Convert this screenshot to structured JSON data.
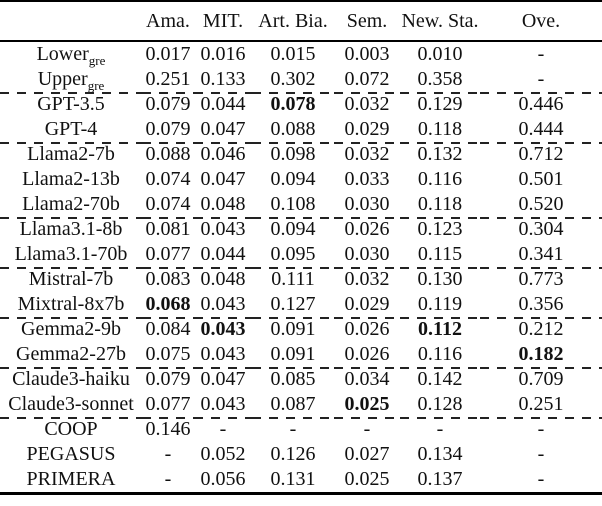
{
  "table": {
    "columns": [
      "Ama.",
      "MIT.",
      "Art. Bia.",
      "Sem.",
      "New. Sta.",
      "Ove."
    ],
    "rows": [
      {
        "label": "Lower",
        "subscript": "gre",
        "values": [
          "0.017",
          "0.016",
          "0.015",
          "0.003",
          "0.010",
          "-"
        ],
        "bold": [],
        "group_start": false
      },
      {
        "label": "Upper",
        "subscript": "gre",
        "values": [
          "0.251",
          "0.133",
          "0.302",
          "0.072",
          "0.358",
          "-"
        ],
        "bold": [],
        "group_start": false
      },
      {
        "label": "GPT-3.5",
        "subscript": "",
        "values": [
          "0.079",
          "0.044",
          "0.078",
          "0.032",
          "0.129",
          "0.446"
        ],
        "bold": [
          2
        ],
        "group_start": true
      },
      {
        "label": "GPT-4",
        "subscript": "",
        "values": [
          "0.079",
          "0.047",
          "0.088",
          "0.029",
          "0.118",
          "0.444"
        ],
        "bold": [],
        "group_start": false
      },
      {
        "label": "Llama2-7b",
        "subscript": "",
        "values": [
          "0.088",
          "0.046",
          "0.098",
          "0.032",
          "0.132",
          "0.712"
        ],
        "bold": [],
        "group_start": true
      },
      {
        "label": "Llama2-13b",
        "subscript": "",
        "values": [
          "0.074",
          "0.047",
          "0.094",
          "0.033",
          "0.116",
          "0.501"
        ],
        "bold": [],
        "group_start": false
      },
      {
        "label": "Llama2-70b",
        "subscript": "",
        "values": [
          "0.074",
          "0.048",
          "0.108",
          "0.030",
          "0.118",
          "0.520"
        ],
        "bold": [],
        "group_start": false
      },
      {
        "label": "Llama3.1-8b",
        "subscript": "",
        "values": [
          "0.081",
          "0.043",
          "0.094",
          "0.026",
          "0.123",
          "0.304"
        ],
        "bold": [],
        "group_start": true
      },
      {
        "label": "Llama3.1-70b",
        "subscript": "",
        "values": [
          "0.077",
          "0.044",
          "0.095",
          "0.030",
          "0.115",
          "0.341"
        ],
        "bold": [],
        "group_start": false
      },
      {
        "label": "Mistral-7b",
        "subscript": "",
        "values": [
          "0.083",
          "0.048",
          "0.111",
          "0.032",
          "0.130",
          "0.773"
        ],
        "bold": [],
        "group_start": true
      },
      {
        "label": "Mixtral-8x7b",
        "subscript": "",
        "values": [
          "0.068",
          "0.043",
          "0.127",
          "0.029",
          "0.119",
          "0.356"
        ],
        "bold": [
          0
        ],
        "group_start": false
      },
      {
        "label": "Gemma2-9b",
        "subscript": "",
        "values": [
          "0.084",
          "0.043",
          "0.091",
          "0.026",
          "0.112",
          "0.212"
        ],
        "bold": [
          1,
          4
        ],
        "group_start": true
      },
      {
        "label": "Gemma2-27b",
        "subscript": "",
        "values": [
          "0.075",
          "0.043",
          "0.091",
          "0.026",
          "0.116",
          "0.182"
        ],
        "bold": [
          5
        ],
        "group_start": false
      },
      {
        "label": "Claude3-haiku",
        "subscript": "",
        "values": [
          "0.079",
          "0.047",
          "0.085",
          "0.034",
          "0.142",
          "0.709"
        ],
        "bold": [],
        "group_start": true
      },
      {
        "label": "Claude3-sonnet",
        "subscript": "",
        "values": [
          "0.077",
          "0.043",
          "0.087",
          "0.025",
          "0.128",
          "0.251"
        ],
        "bold": [
          3
        ],
        "group_start": false
      },
      {
        "label": "COOP",
        "subscript": "",
        "values": [
          "0.146",
          "-",
          "-",
          "-",
          "-",
          "-"
        ],
        "bold": [],
        "group_start": true
      },
      {
        "label": "PEGASUS",
        "subscript": "",
        "values": [
          "-",
          "0.052",
          "0.126",
          "0.027",
          "0.134",
          "-"
        ],
        "bold": [],
        "group_start": false
      },
      {
        "label": "PRIMERA",
        "subscript": "",
        "values": [
          "-",
          "0.056",
          "0.131",
          "0.025",
          "0.137",
          "-"
        ],
        "bold": [],
        "group_start": false
      }
    ]
  },
  "colors": {
    "text": "#111111",
    "rule": "#000000",
    "dash_rule": "#222222",
    "background": "#ffffff"
  }
}
